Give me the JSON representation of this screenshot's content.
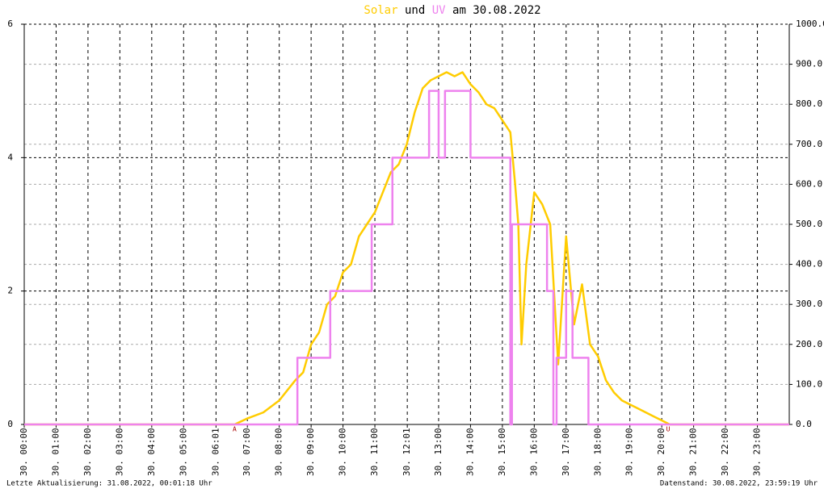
{
  "chart_data": {
    "type": "line",
    "title_parts": [
      "und",
      "am 30.08.2022"
    ],
    "footer_left": "Letzte Aktualisierung: 31.08.2022, 00:01:18 Uhr",
    "footer_right": "Datenstand: 30.08.2022, 23:59:19 Uhr",
    "xlim": [
      0,
      24
    ],
    "xticks": [
      {
        "value": 0,
        "label": "30. 00:00"
      },
      {
        "value": 1,
        "label": "30. 01:00"
      },
      {
        "value": 2,
        "label": "30. 02:00"
      },
      {
        "value": 3,
        "label": "30. 03:00"
      },
      {
        "value": 4,
        "label": "30. 04:00"
      },
      {
        "value": 5,
        "label": "30. 05:00"
      },
      {
        "value": 6.0167,
        "label": "30. 06:01"
      },
      {
        "value": 7,
        "label": "30. 07:00"
      },
      {
        "value": 8,
        "label": "30. 08:00"
      },
      {
        "value": 9,
        "label": "30. 09:00"
      },
      {
        "value": 10,
        "label": "30. 10:00"
      },
      {
        "value": 11,
        "label": "30. 11:00"
      },
      {
        "value": 12.0167,
        "label": "30. 12:01"
      },
      {
        "value": 13,
        "label": "30. 13:00"
      },
      {
        "value": 14,
        "label": "30. 14:00"
      },
      {
        "value": 15,
        "label": "30. 15:00"
      },
      {
        "value": 16,
        "label": "30. 16:00"
      },
      {
        "value": 17,
        "label": "30. 17:00"
      },
      {
        "value": 18,
        "label": "30. 18:00"
      },
      {
        "value": 19,
        "label": "30. 19:00"
      },
      {
        "value": 20,
        "label": "30. 20:00"
      },
      {
        "value": 21,
        "label": "30. 21:00"
      },
      {
        "value": 22,
        "label": "30. 22:00"
      },
      {
        "value": 23,
        "label": "30. 23:00"
      }
    ],
    "ylim": [
      0,
      6
    ],
    "yticks": [
      0,
      2,
      4,
      6
    ],
    "y2lim": [
      0,
      1000
    ],
    "y2ticks": [
      {
        "value": 0,
        "label": "0.0"
      },
      {
        "value": 100,
        "label": "100.0"
      },
      {
        "value": 200,
        "label": "200.0"
      },
      {
        "value": 300,
        "label": "300.0"
      },
      {
        "value": 400,
        "label": "400.0"
      },
      {
        "value": 500,
        "label": "500.0"
      },
      {
        "value": 600,
        "label": "600.0"
      },
      {
        "value": 700,
        "label": "700.0"
      },
      {
        "value": 800,
        "label": "800.0"
      },
      {
        "value": 900,
        "label": "900.0"
      },
      {
        "value": 1000,
        "label": "1000.0"
      }
    ],
    "grid": true,
    "annotations": [
      {
        "text": "A",
        "x": 6.6
      },
      {
        "text": "U",
        "x": 20.2
      }
    ],
    "series": [
      {
        "name": "Solar",
        "color": "#ffcc00",
        "axis": "y2",
        "x": [
          0,
          6.6,
          7,
          7.5,
          8,
          8.25,
          8.5,
          8.75,
          9,
          9.25,
          9.5,
          9.75,
          10,
          10.25,
          10.5,
          10.75,
          11,
          11.25,
          11.5,
          11.75,
          12,
          12.25,
          12.5,
          12.75,
          13,
          13.25,
          13.5,
          13.75,
          14,
          14.25,
          14.5,
          14.75,
          15,
          15.25,
          15.4,
          15.5,
          15.6,
          15.75,
          16,
          16.25,
          16.5,
          16.75,
          17,
          17.25,
          17.5,
          17.75,
          18,
          18.25,
          18.5,
          18.75,
          19,
          19.25,
          19.5,
          19.75,
          20,
          20.25,
          24
        ],
        "values": [
          0,
          0,
          15,
          30,
          60,
          85,
          110,
          130,
          200,
          230,
          300,
          320,
          380,
          400,
          470,
          500,
          530,
          580,
          630,
          650,
          700,
          780,
          840,
          860,
          870,
          880,
          870,
          880,
          850,
          830,
          800,
          790,
          760,
          730,
          600,
          500,
          200,
          400,
          580,
          550,
          500,
          150,
          470,
          250,
          350,
          200,
          170,
          110,
          80,
          60,
          50,
          40,
          30,
          20,
          10,
          0,
          0
        ]
      },
      {
        "name": "UV",
        "color": "#ee82ee",
        "axis": "y",
        "x": [
          0,
          8.57,
          8.57,
          9.6,
          9.6,
          10.9,
          10.9,
          11.55,
          11.55,
          12.7,
          12.7,
          13.0,
          13.0,
          13.2,
          13.2,
          14.0,
          14.0,
          15.25,
          15.25,
          15.3,
          15.3,
          16.4,
          16.4,
          16.6,
          16.6,
          16.7,
          16.7,
          17.0,
          17.0,
          17.2,
          17.2,
          17.7,
          17.7,
          24
        ],
        "values": [
          0,
          0,
          1,
          1,
          2,
          2,
          3,
          3,
          4,
          4,
          5,
          5,
          4,
          4,
          5,
          5,
          4,
          4,
          0,
          0,
          3,
          3,
          2,
          2,
          0,
          0,
          1,
          1,
          2,
          2,
          1,
          1,
          0,
          0
        ]
      }
    ]
  }
}
